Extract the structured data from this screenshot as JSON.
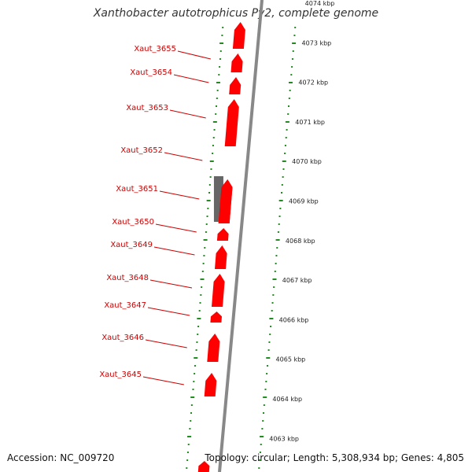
{
  "title": "Xanthobacter autotrophicus Py2, complete genome",
  "accession": "Accession: NC_009720",
  "topology": "Topology: circular; Length: 5,308,934 bp; Genes: 4,805",
  "colors": {
    "forward_gene": "#ff0000",
    "gray_gene": "#666666",
    "backbone": "#888888",
    "label": "#cc0000",
    "gc_ticks": "#228b22"
  },
  "genes": [
    {
      "name": "Xaut_3655",
      "strand": "forward"
    },
    {
      "name": "Xaut_3654",
      "strand": "forward"
    },
    {
      "name": "Xaut_3653",
      "strand": "forward"
    },
    {
      "name": "Xaut_3652",
      "strand": "forward"
    },
    {
      "name": "Xaut_3651",
      "strand": "other"
    },
    {
      "name": "Xaut_3650",
      "strand": "forward"
    },
    {
      "name": "Xaut_3649",
      "strand": "forward"
    },
    {
      "name": "Xaut_3648",
      "strand": "forward"
    },
    {
      "name": "Xaut_3647",
      "strand": "forward"
    },
    {
      "name": "Xaut_3646",
      "strand": "forward"
    },
    {
      "name": "Xaut_3645",
      "strand": "forward"
    }
  ],
  "kbp_ticks": [
    "4074 kbp",
    "4073 kbp",
    "4072 kbp",
    "4071 kbp",
    "4070 kbp",
    "4069 kbp",
    "4068 kbp",
    "4067 kbp",
    "4066 kbp",
    "4065 kbp",
    "4064 kbp",
    "4063 kbp"
  ]
}
